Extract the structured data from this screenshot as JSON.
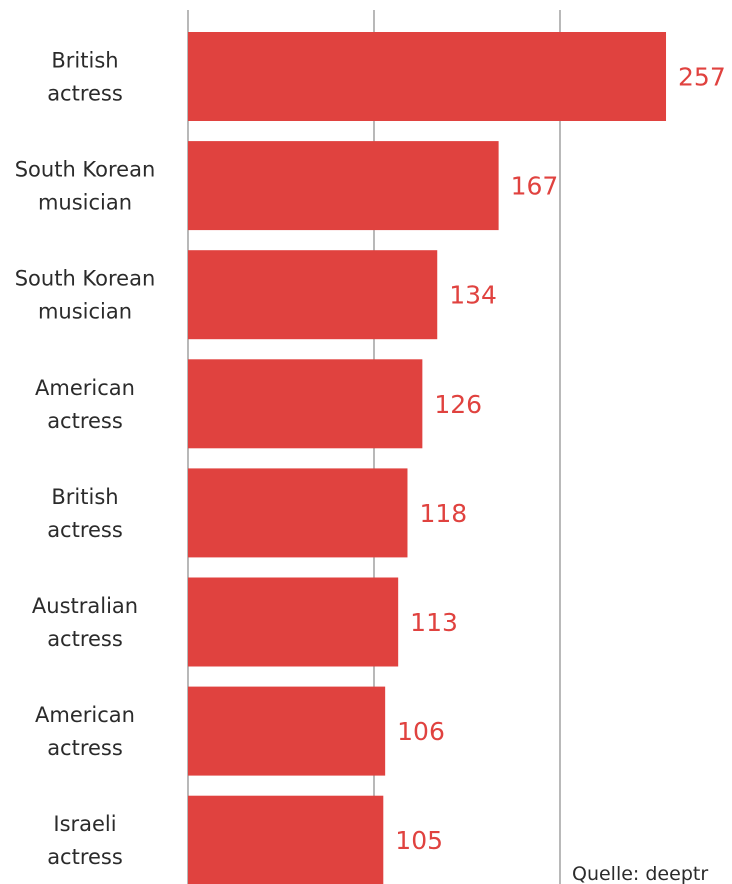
{
  "chart_data": {
    "type": "bar",
    "orientation": "horizontal",
    "categories": [
      "British actress",
      "South Korean musician",
      "South Korean musician",
      "American actress",
      "British actress",
      "Australian actress",
      "American actress",
      "Israeli actress"
    ],
    "category_lines": [
      [
        "British",
        "actress"
      ],
      [
        "South Korean",
        "musician"
      ],
      [
        "South Korean",
        "musician"
      ],
      [
        "American",
        "actress"
      ],
      [
        "British",
        "actress"
      ],
      [
        "Australian",
        "actress"
      ],
      [
        "American",
        "actress"
      ],
      [
        "Israeli",
        "actress"
      ]
    ],
    "values": [
      257,
      167,
      134,
      126,
      118,
      113,
      106,
      105
    ],
    "value_labels": [
      "257",
      "167",
      "134",
      "126",
      "118",
      "113",
      "106",
      "105"
    ],
    "title": "",
    "xlabel": "",
    "ylabel": "",
    "xlim": [
      0,
      300
    ],
    "gridlines_x": [
      0,
      100,
      200
    ],
    "grid": true,
    "legend": "none",
    "bar_color": "#e0423f",
    "value_label_color": "#e0423f",
    "source": "Quelle: deeptr"
  }
}
